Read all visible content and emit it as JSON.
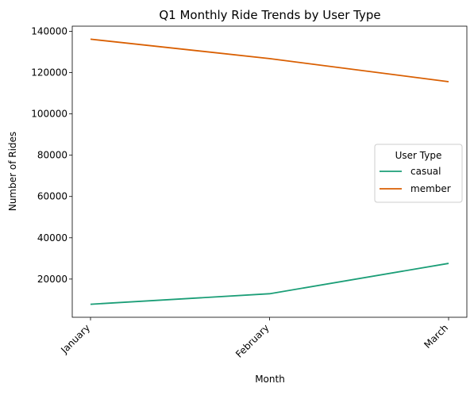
{
  "chart_data": {
    "type": "line",
    "title": "Q1 Monthly Ride Trends by User Type",
    "xlabel": "Month",
    "ylabel": "Number of Rides",
    "categories": [
      "January",
      "February",
      "March"
    ],
    "ylim": [
      1500,
      142500
    ],
    "yticks": [
      20000,
      40000,
      60000,
      80000,
      100000,
      120000,
      140000
    ],
    "ytick_labels": [
      "20000",
      "40000",
      "60000",
      "80000",
      "100000",
      "120000",
      "140000"
    ],
    "grid": false,
    "legend": {
      "title": "User Type",
      "placement": "center-right"
    },
    "series": [
      {
        "name": "casual",
        "color": "#1b9e77",
        "values": [
          7800,
          12900,
          27600
        ]
      },
      {
        "name": "member",
        "color": "#d95f02",
        "values": [
          136200,
          126800,
          115600
        ]
      }
    ]
  }
}
